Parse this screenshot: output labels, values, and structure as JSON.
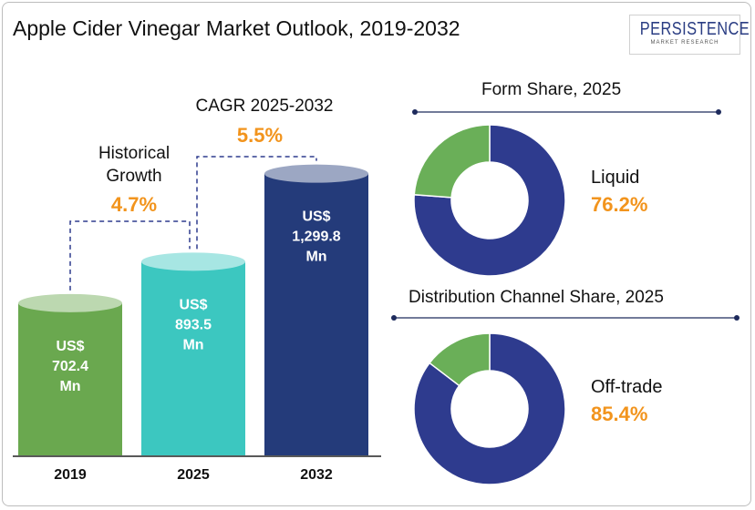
{
  "title": "Apple Cider Vinegar Market Outlook, 2019-2032",
  "logo": {
    "name": "PERSISTENCE",
    "sub": "MARKET RESEARCH"
  },
  "annotations": {
    "historical_label_line1": "Historical",
    "historical_label_line2": "Growth",
    "historical_value": "4.7%",
    "cagr_label": "CAGR 2025-2032",
    "cagr_value": "5.5%"
  },
  "chart_data": [
    {
      "type": "bar",
      "categories": [
        "2019",
        "2025",
        "2032"
      ],
      "values": [
        702.4,
        893.5,
        1299.8
      ],
      "value_labels": [
        "US$|702.4|Mn",
        "US$|893.5|Mn",
        "US$|1,299.8|Mn"
      ],
      "colors": [
        "#6aa84f",
        "#3cc7c0",
        "#243b7a"
      ],
      "title": "",
      "xlabel": "",
      "ylabel": ""
    },
    {
      "type": "pie",
      "title": "Form Share, 2025",
      "highlight_label": "Liquid",
      "highlight_value": "76.2%",
      "slices": [
        76.2,
        23.8
      ],
      "colors": [
        "#2e3b8e",
        "#6aaf58"
      ]
    },
    {
      "type": "pie",
      "title": "Distribution Channel Share, 2025",
      "highlight_label": "Off-trade",
      "highlight_value": "85.4%",
      "slices": [
        85.4,
        14.6
      ],
      "colors": [
        "#2e3b8e",
        "#6aaf58"
      ]
    }
  ]
}
